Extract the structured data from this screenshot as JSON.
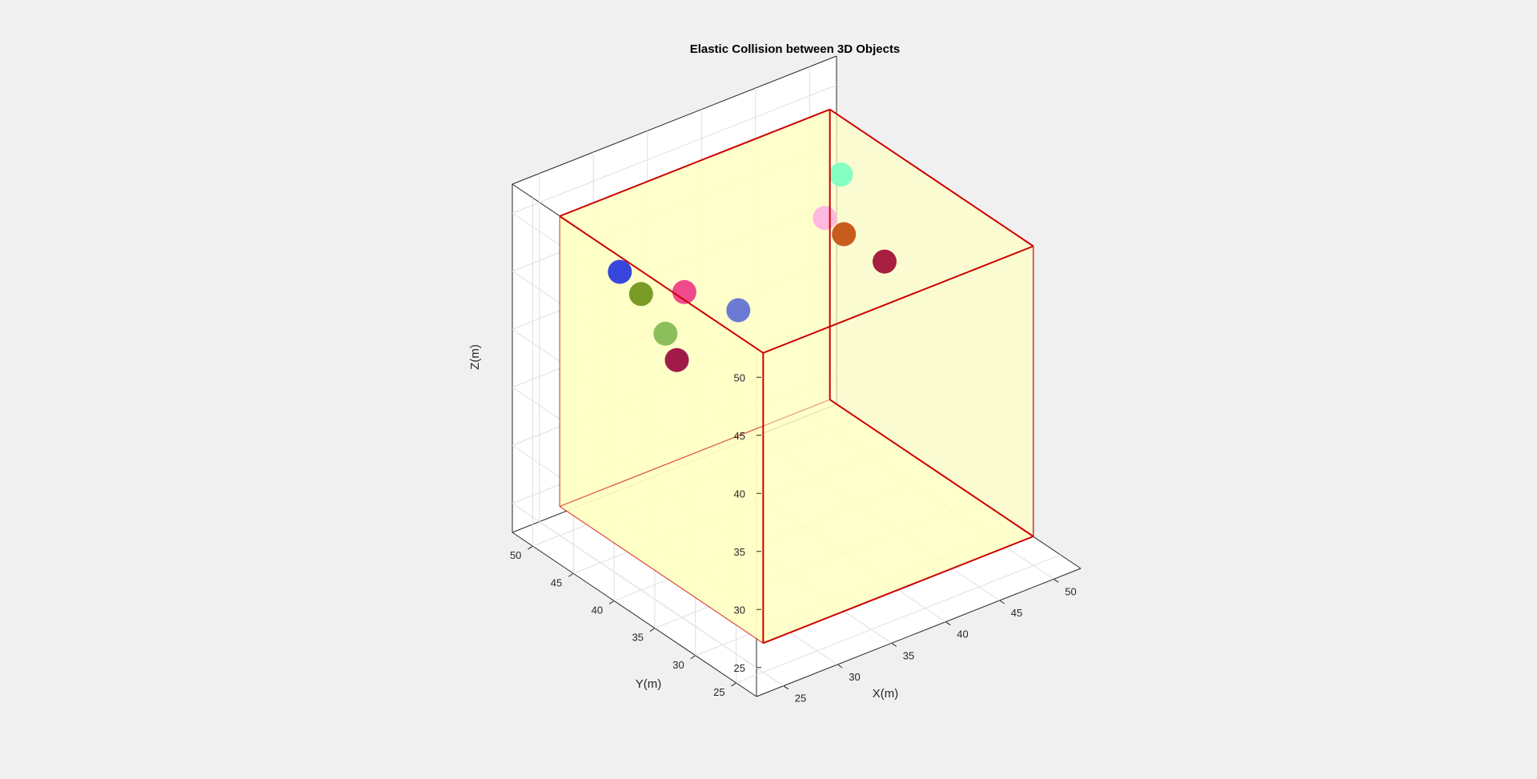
{
  "chart_data": {
    "type": "scatter3d",
    "title": "Elastic Collision between 3D Objects",
    "xlabel": "X(m)",
    "ylabel": "Y(m)",
    "zlabel": "Z(m)",
    "xlim": [
      22.5,
      52.5
    ],
    "ylim": [
      22.5,
      52.5
    ],
    "zlim": [
      22.5,
      52.5
    ],
    "xticks": [
      25,
      30,
      35,
      40,
      45,
      50
    ],
    "yticks": [
      25,
      30,
      35,
      40,
      45,
      50
    ],
    "zticks": [
      25,
      30,
      35,
      40,
      45,
      50
    ],
    "grid": true,
    "box": {
      "min": [
        25,
        25,
        25
      ],
      "max": [
        50,
        50,
        50
      ],
      "face_color": "#ffffc4",
      "edge_color": "#cc0000"
    },
    "spheres": [
      {
        "x": 26.8,
        "y": 45.0,
        "z": 46.9,
        "color": "#3846db"
      },
      {
        "x": 25.0,
        "y": 40.0,
        "z": 48.0,
        "color": "#799c26"
      },
      {
        "x": 25.0,
        "y": 37.0,
        "z": 46.0,
        "color": "#8cbf5c"
      },
      {
        "x": 28.4,
        "y": 39.2,
        "z": 47.3,
        "color": "#ef4a8c"
      },
      {
        "x": 25.9,
        "y": 36.8,
        "z": 43.5,
        "color": "#a01b4a"
      },
      {
        "x": 34.0,
        "y": 40.0,
        "z": 43.3,
        "color": "#6b7bd4"
      },
      {
        "x": 42.0,
        "y": 40.0,
        "z": 48.3,
        "color": "#ffb8e0"
      },
      {
        "x": 45.0,
        "y": 42.0,
        "z": 50.0,
        "color": "#85ffc4"
      },
      {
        "x": 40.0,
        "y": 35.0,
        "z": 50.0,
        "color": "#c85c1c"
      },
      {
        "x": 40.0,
        "y": 30.0,
        "z": 50.0,
        "color": "#a61f3f"
      }
    ]
  }
}
